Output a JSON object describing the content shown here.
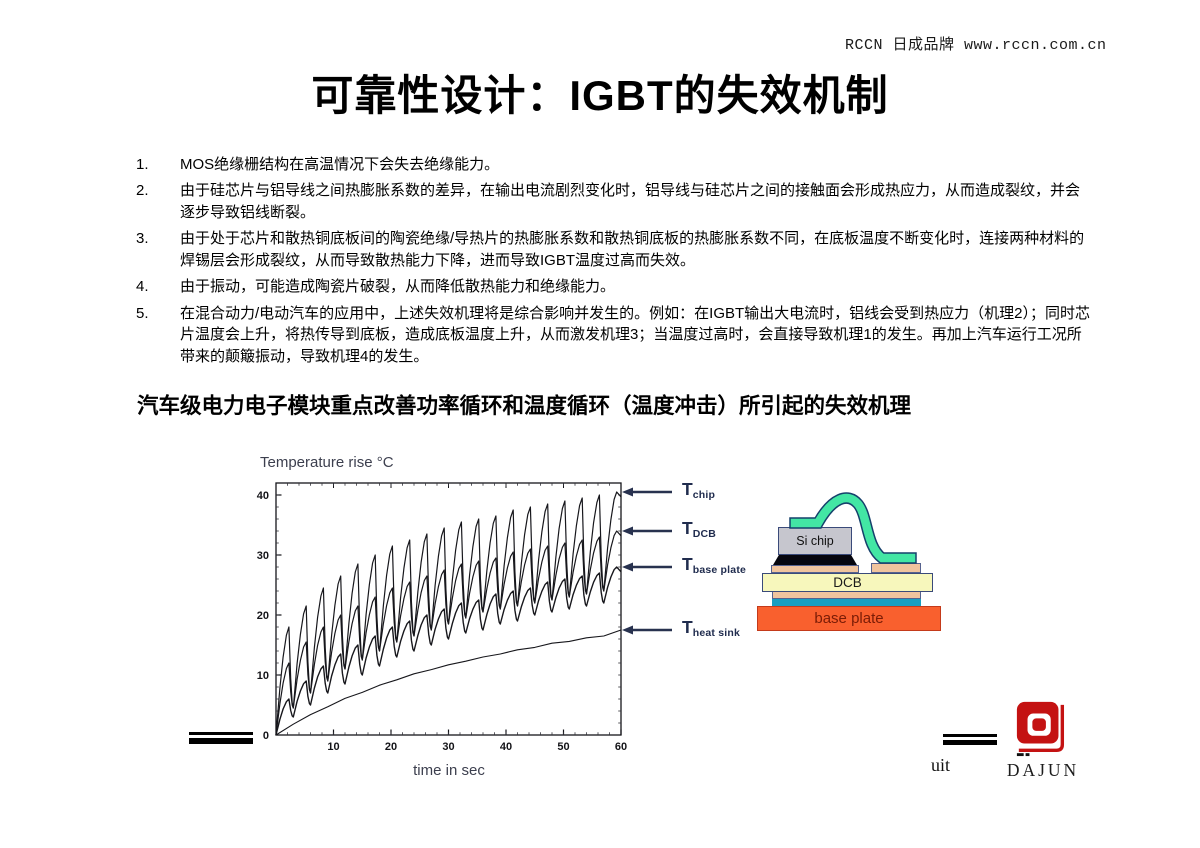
{
  "header": {
    "brand": "RCCN 日成品牌 www.rccn.com.cn",
    "title": "可靠性设计：IGBT的失效机制"
  },
  "list": {
    "items": [
      {
        "num": "1.",
        "text": "MOS绝缘栅结构在高温情况下会失去绝缘能力。"
      },
      {
        "num": "2.",
        "text": "由于硅芯片与铝导线之间热膨胀系数的差异，在输出电流剧烈变化时，铝导线与硅芯片之间的接触面会形成热应力，从而造成裂纹，并会逐步导致铝线断裂。"
      },
      {
        "num": "3.",
        "text": "由于处于芯片和散热铜底板间的陶瓷绝缘/导热片的热膨胀系数和散热铜底板的热膨胀系数不同，在底板温度不断变化时，连接两种材料的焊锡层会形成裂纹，从而导致散热能力下降，进而导致IGBT温度过高而失效。"
      },
      {
        "num": "4.",
        "text": "由于振动，可能造成陶瓷片破裂，从而降低散热能力和绝缘能力。"
      },
      {
        "num": "5.",
        "text": "在混合动力/电动汽车的应用中，上述失效机理将是综合影响并发生的。例如：在IGBT输出大电流时，铝线会受到热应力（机理2）；同时芯片温度会上升，将热传导到底板，造成底板温度上升，从而激发机理3；当温度过高时，会直接导致机理1的发生。再加上汽车运行工况所带来的颠簸振动，导致机理4的发生。"
      }
    ]
  },
  "statement": "汽车级电力电子模块重点改善功率循环和温度循环（温度冲击）所引起的失效机理",
  "chart_data": {
    "type": "line",
    "title": "Temperature rise °C",
    "ylabel": "Temperature rise °C",
    "xlabel": "time in sec",
    "xlim": [
      0,
      60
    ],
    "ylim": [
      0,
      42
    ],
    "x_ticks": [
      10,
      20,
      30,
      40,
      50,
      60
    ],
    "y_ticks": [
      0,
      10,
      20,
      30,
      40
    ],
    "grid": false,
    "legend_position": "right-arrows",
    "cycle_period_sec": 3,
    "series": [
      {
        "name": "T_chip",
        "label_main": "T",
        "label_sub": "chip",
        "end_value": 40.5,
        "width": 1.2,
        "peaks": [
          18,
          21.5,
          24.5,
          26.5,
          28.5,
          30,
          31.5,
          32.5,
          33.5,
          34.5,
          35.5,
          36,
          36.5,
          37.5,
          38,
          38.5,
          39,
          39.5,
          40,
          40.5
        ],
        "valleys": [
          0,
          4.5,
          7,
          9,
          11,
          12.5,
          14,
          15.5,
          16.5,
          17.5,
          18.5,
          19.5,
          20.5,
          21,
          21.5,
          22,
          22.5,
          23,
          23.5,
          24,
          24.5
        ]
      },
      {
        "name": "T_DCB",
        "label_main": "T",
        "label_sub": "DCB",
        "end_value": 34,
        "width": 1.2,
        "peaks": [
          12,
          15.5,
          18,
          20,
          21.5,
          23,
          24.5,
          25.5,
          26.5,
          27.5,
          28.5,
          29,
          29.5,
          30.5,
          31,
          31.5,
          32,
          32.5,
          33,
          34
        ],
        "valleys": [
          0,
          4.5,
          7,
          9,
          11,
          12.5,
          14,
          15.5,
          16.5,
          17.5,
          18.5,
          19.5,
          20.5,
          21,
          21.5,
          22,
          22.5,
          23,
          23.5,
          24,
          24.5
        ]
      },
      {
        "name": "T_base_plate",
        "label_main": "T",
        "label_sub": "base plate",
        "end_value": 28,
        "width": 1.4,
        "peaks": [
          6,
          9,
          11.5,
          13.5,
          15,
          16.5,
          18,
          19,
          20,
          21,
          22,
          22.5,
          23.5,
          24,
          24.5,
          25.5,
          26,
          26.5,
          27,
          28
        ],
        "valleys": [
          0,
          3,
          5,
          7,
          8.5,
          10,
          11.5,
          13,
          14,
          15,
          16,
          17,
          17.5,
          18.5,
          19,
          20,
          20.5,
          21,
          21.5,
          22,
          23
        ]
      },
      {
        "name": "T_heat_sink",
        "label_main": "T",
        "label_sub": "heat sink",
        "end_value": 17.5,
        "width": 1.1,
        "x": [
          0,
          3,
          6,
          9,
          12,
          15,
          18,
          21,
          24,
          27,
          30,
          33,
          36,
          39,
          42,
          45,
          48,
          51,
          54,
          57,
          60
        ],
        "y": [
          0,
          1.8,
          3.4,
          4.7,
          6.1,
          7.1,
          8.3,
          9.2,
          10.2,
          10.9,
          11.7,
          12.3,
          13,
          13.5,
          14.2,
          14.6,
          15.3,
          15.6,
          16.2,
          16.5,
          17.5
        ]
      }
    ]
  },
  "diagram": {
    "si_chip": "Si chip",
    "dcb": "DCB",
    "base_plate": "base plate",
    "colors": {
      "wire": "#43e6a4",
      "wire_outline": "#15406b",
      "chip": "#c6c6ce",
      "solder": "#06060f",
      "copper": "#f0c49e",
      "ceramic": "#f7f7bc",
      "base_solder": "#199fc0",
      "base_plate": "#f9602e"
    }
  },
  "footer": {
    "fragment": "uit",
    "logo_text": "DAJUN",
    "logo_color": "#c41212"
  }
}
